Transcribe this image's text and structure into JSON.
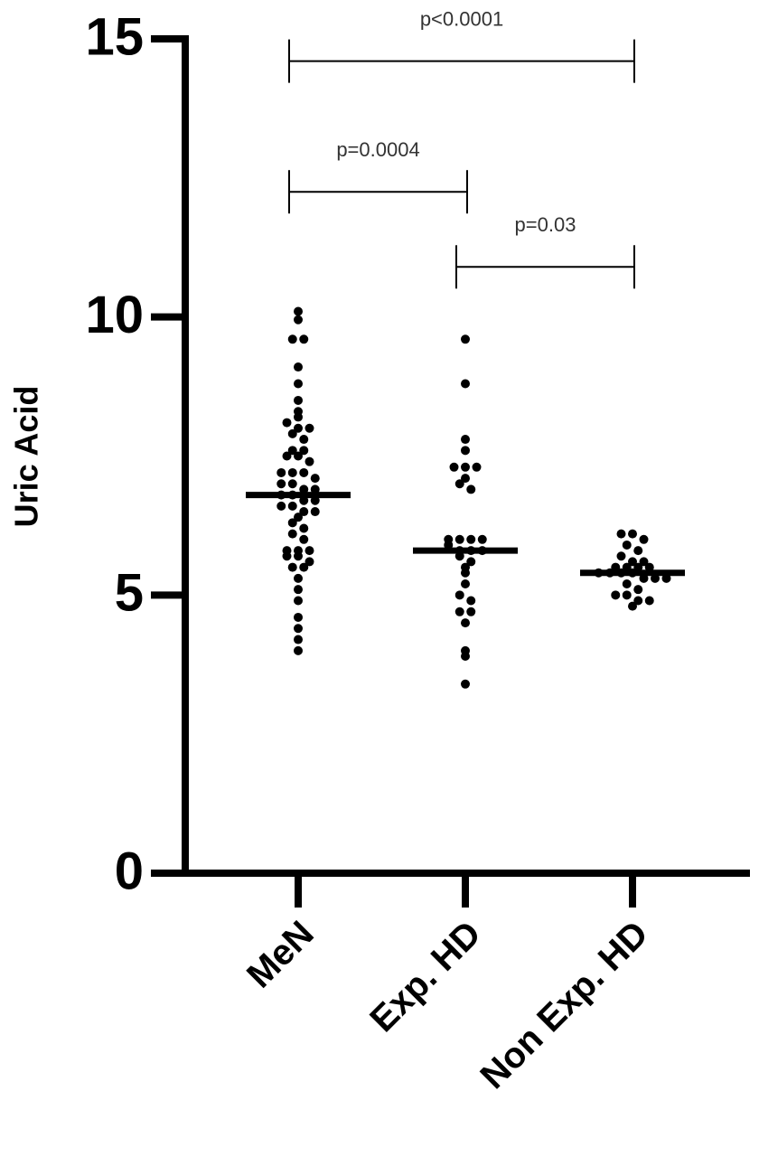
{
  "chart_data": {
    "type": "dot",
    "y_label": "Uric Acid",
    "categories": [
      "MeN",
      "Exp. HD",
      "Non Exp. HD"
    ],
    "color": "#000000",
    "values": [
      [
        10.1,
        9.95,
        9.6,
        9.6,
        9.1,
        8.8,
        8.5,
        8.3,
        8.2,
        8.1,
        8.0,
        8.0,
        7.9,
        7.8,
        7.6,
        7.6,
        7.5,
        7.5,
        7.4,
        7.2,
        7.2,
        7.2,
        7.1,
        7.0,
        7.0,
        6.9,
        6.9,
        6.8,
        6.8,
        6.7,
        6.7,
        6.6,
        6.6,
        6.5,
        6.5,
        6.4,
        6.3,
        6.2,
        6.1,
        6.0,
        5.8,
        5.8,
        5.8,
        5.7,
        5.7,
        5.6,
        5.5,
        5.5,
        5.3,
        5.1,
        4.9,
        4.6,
        4.4,
        4.2,
        4.0
      ],
      [
        9.6,
        8.8,
        7.8,
        7.6,
        7.3,
        7.3,
        7.3,
        7.1,
        7.0,
        6.9,
        6.0,
        6.0,
        6.0,
        6.0,
        5.9,
        5.8,
        5.8,
        5.8,
        5.7,
        5.6,
        5.5,
        5.4,
        5.2,
        5.0,
        4.9,
        4.7,
        4.7,
        4.5,
        4.0,
        3.9,
        3.4
      ],
      [
        6.1,
        6.1,
        6.0,
        5.9,
        5.8,
        5.7,
        5.6,
        5.6,
        5.5,
        5.5,
        5.5,
        5.5,
        5.4,
        5.4,
        5.4,
        5.4,
        5.3,
        5.3,
        5.3,
        5.2,
        5.1,
        5.0,
        5.0,
        4.9,
        4.9,
        4.8
      ]
    ],
    "medians": [
      6.8,
      5.8,
      5.4
    ],
    "ylim": [
      0,
      15
    ],
    "yticks": [
      0,
      5,
      10,
      15
    ],
    "brackets": [
      {
        "label": "p<0.0001",
        "between": [
          0,
          2
        ],
        "y": 14.6
      },
      {
        "label": "p=0.0004",
        "between": [
          0,
          1
        ],
        "y": 12.25
      },
      {
        "label": "p=0.03",
        "between": [
          1,
          2
        ],
        "y": 10.9
      }
    ]
  }
}
